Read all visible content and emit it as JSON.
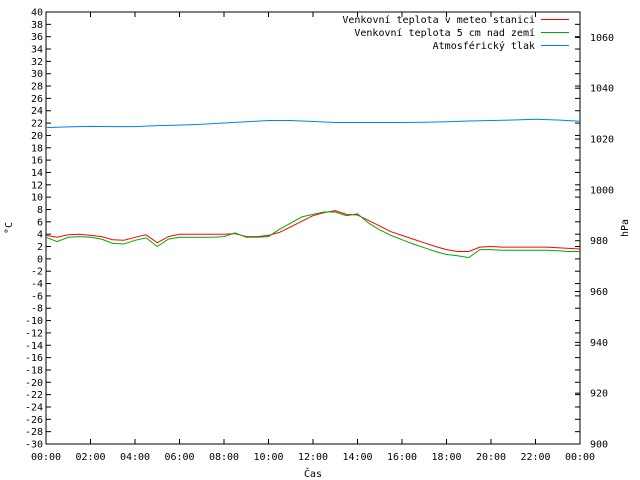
{
  "chart_data": {
    "type": "line",
    "xlabel": "Čas",
    "ylabel_left": "°C",
    "ylabel_right": "hPa",
    "x_ticks": [
      "00:00",
      "02:00",
      "04:00",
      "06:00",
      "08:00",
      "10:00",
      "12:00",
      "14:00",
      "16:00",
      "18:00",
      "20:00",
      "22:00",
      "00:00"
    ],
    "x_range_hours": [
      0,
      24
    ],
    "ylim_left": [
      -30,
      40
    ],
    "ylim_right": [
      900,
      1070
    ],
    "y_ticks_left": [
      40,
      38,
      36,
      34,
      32,
      30,
      28,
      26,
      24,
      22,
      20,
      18,
      16,
      14,
      12,
      10,
      8,
      6,
      4,
      2,
      0,
      -2,
      -4,
      -6,
      -8,
      -10,
      -12,
      -14,
      -16,
      -18,
      -20,
      -22,
      -24,
      -26,
      -28,
      -30
    ],
    "y_ticks_right": [
      1060,
      1040,
      1020,
      1000,
      980,
      960,
      940,
      920,
      900
    ],
    "grid": false,
    "legend_position": "top-right",
    "series": [
      {
        "name": "Venkovní teplota v meteo stanici",
        "color": "#ff0000",
        "axis": "left",
        "x": [
          0,
          0.5,
          1,
          1.5,
          2,
          2.5,
          3,
          3.5,
          4,
          4.5,
          5,
          5.5,
          6,
          6.5,
          7,
          7.5,
          8,
          8.5,
          9,
          9.5,
          10,
          10.5,
          11,
          11.5,
          12,
          12.5,
          13,
          13.5,
          14,
          14.5,
          15,
          15.5,
          16,
          16.5,
          17,
          17.5,
          18,
          18.5,
          19,
          19.5,
          20,
          20.5,
          21,
          21.5,
          22,
          22.5,
          23,
          23.5,
          24
        ],
        "values": [
          3.8,
          3.5,
          3.9,
          4.0,
          3.8,
          3.6,
          3.1,
          3.0,
          3.5,
          3.9,
          2.6,
          3.6,
          4.0,
          4.0,
          4.0,
          4.0,
          4.0,
          4.1,
          3.6,
          3.6,
          3.8,
          4.3,
          5.2,
          6.1,
          7.0,
          7.5,
          7.8,
          7.2,
          7.1,
          6.2,
          5.3,
          4.4,
          3.8,
          3.2,
          2.6,
          2.0,
          1.5,
          1.2,
          1.2,
          1.9,
          2.0,
          1.9,
          1.9,
          1.9,
          1.9,
          1.9,
          1.8,
          1.7,
          1.6
        ]
      },
      {
        "name": "Venkovní teplota 5 cm nad zemí",
        "color": "#00aa00",
        "axis": "left",
        "x": [
          0,
          0.5,
          1,
          1.5,
          2,
          2.5,
          3,
          3.5,
          4,
          4.5,
          5,
          5.5,
          6,
          6.5,
          7,
          7.5,
          8,
          8.5,
          9,
          9.5,
          10,
          10.5,
          11,
          11.5,
          12,
          12.5,
          13,
          13.5,
          14,
          14.5,
          15,
          15.5,
          16,
          16.5,
          17,
          17.5,
          18,
          18.5,
          19,
          19.5,
          20,
          20.5,
          21,
          21.5,
          22,
          22.5,
          23,
          23.5,
          24
        ],
        "values": [
          3.5,
          2.8,
          3.5,
          3.6,
          3.5,
          3.2,
          2.5,
          2.4,
          3.0,
          3.4,
          2.0,
          3.2,
          3.5,
          3.5,
          3.5,
          3.5,
          3.6,
          4.2,
          3.5,
          3.5,
          3.6,
          4.8,
          5.8,
          6.8,
          7.2,
          7.6,
          7.6,
          7.0,
          7.3,
          5.8,
          4.7,
          3.8,
          3.1,
          2.4,
          1.8,
          1.2,
          0.7,
          0.5,
          0.2,
          1.5,
          1.5,
          1.4,
          1.4,
          1.4,
          1.4,
          1.4,
          1.3,
          1.2,
          1.2
        ]
      },
      {
        "name": "Atmosférický tlak",
        "color": "#0080ff",
        "axis": "right",
        "x": [
          0,
          1,
          2,
          3,
          4,
          5,
          6,
          7,
          8,
          9,
          10,
          11,
          12,
          13,
          14,
          15,
          16,
          17,
          18,
          19,
          20,
          21,
          22,
          23,
          24
        ],
        "values": [
          1024.5,
          1024.8,
          1025.0,
          1024.9,
          1024.9,
          1025.3,
          1025.5,
          1025.8,
          1026.3,
          1026.8,
          1027.3,
          1027.3,
          1026.9,
          1026.5,
          1026.5,
          1026.5,
          1026.5,
          1026.6,
          1026.8,
          1027.1,
          1027.3,
          1027.5,
          1027.8,
          1027.5,
          1027.0
        ]
      }
    ]
  }
}
